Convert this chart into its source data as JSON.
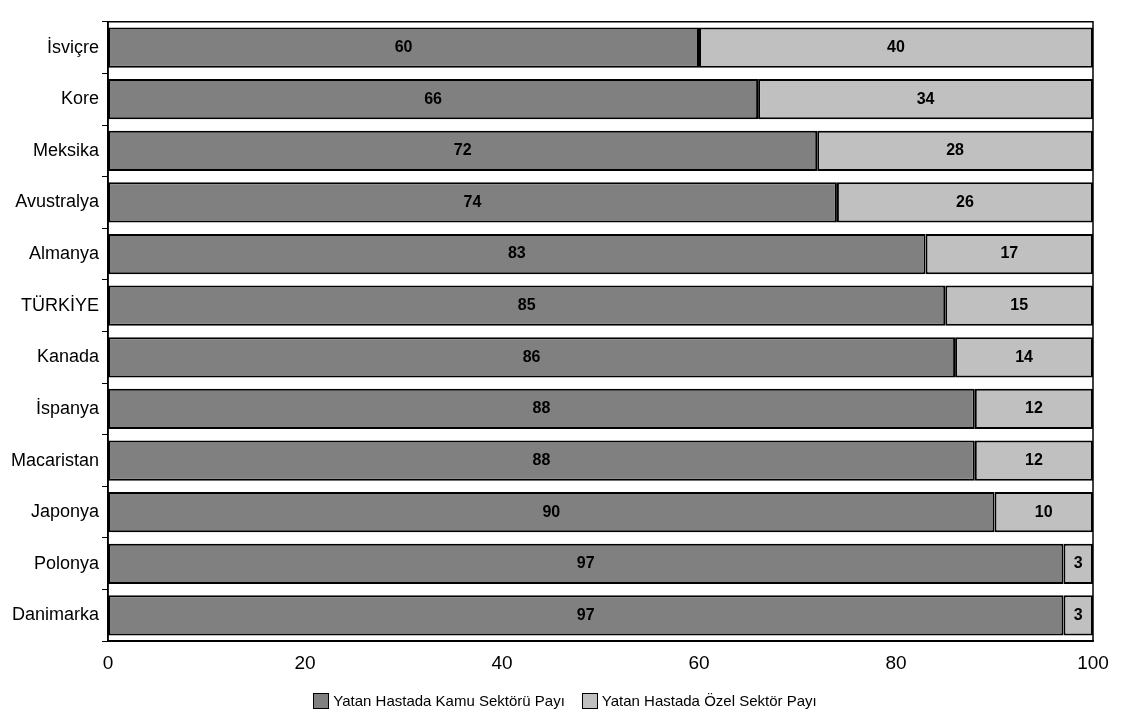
{
  "chart_data": {
    "type": "bar",
    "orientation": "horizontal",
    "stacked": true,
    "categories": [
      "İsviçre",
      "Kore",
      "Meksika",
      "Avustralya",
      "Almanya",
      "TÜRKİYE",
      "Kanada",
      "İspanya",
      "Macaristan",
      "Japonya",
      "Polonya",
      "Danimarka"
    ],
    "series": [
      {
        "name": "Yatan Hastada Kamu Sektörü Payı",
        "color": "#808080",
        "values": [
          60,
          66,
          72,
          74,
          83,
          85,
          86,
          88,
          88,
          90,
          97,
          97
        ]
      },
      {
        "name": "Yatan Hastada Özel Sektör Payı",
        "color": "#c0c0c0",
        "values": [
          40,
          34,
          28,
          26,
          17,
          15,
          14,
          12,
          12,
          10,
          3,
          3
        ]
      }
    ],
    "xlim": [
      0,
      100
    ],
    "xticks": [
      0,
      20,
      40,
      60,
      80,
      100
    ],
    "data_labels": true,
    "legend": "bottom"
  }
}
